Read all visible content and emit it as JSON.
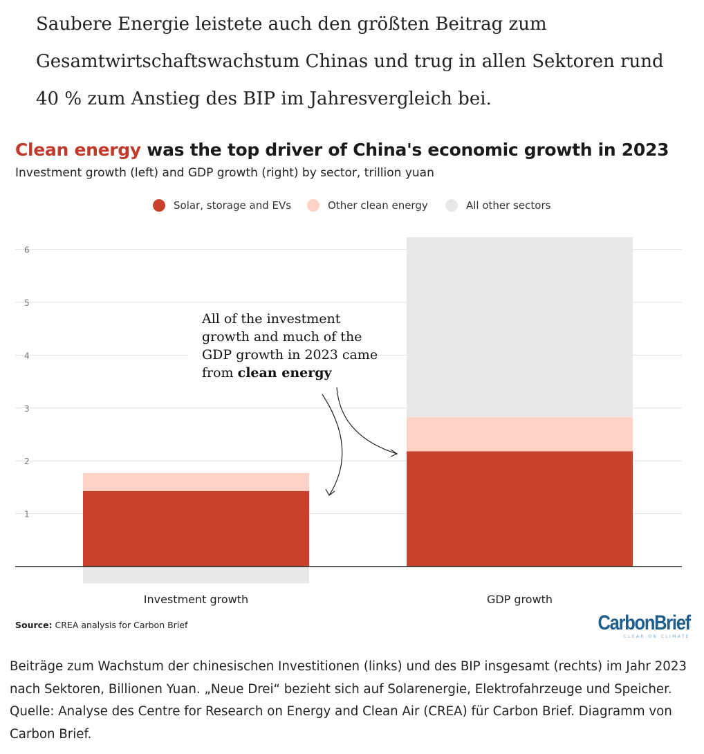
{
  "article": {
    "intro_text": "Saubere Energie leistete auch den größten Beitrag zum Gesamtwirtschaftswachstum Chinas und trug in allen Sektoren rund 40 % zum Anstieg des BIP im Jahresvergleich bei."
  },
  "chart_data": {
    "type": "bar",
    "stacked": true,
    "title_highlight": "Clean energy",
    "title_rest": " was the top driver of China's economic growth in 2023",
    "subtitle": "Investment growth (left) and GDP growth (right) by sector, trillion yuan",
    "categories": [
      "Investment growth",
      "GDP growth"
    ],
    "series": [
      {
        "name": "Solar, storage and EVs",
        "color": "#c8412c",
        "values": [
          1.43,
          2.18
        ]
      },
      {
        "name": "Other clean energy",
        "color": "#fdd2c5",
        "values": [
          0.34,
          0.65
        ]
      },
      {
        "name": "All other sectors",
        "color": "#e8e8e8",
        "values": [
          -0.32,
          3.4
        ]
      }
    ],
    "ylim": [
      -0.32,
      6.2
    ],
    "yticks": [
      1,
      2,
      3,
      4,
      5,
      6
    ],
    "grid": true,
    "legend_position": "top-center",
    "annotation_lines": [
      "All of the investment",
      "growth and much of the",
      "GDP growth in 2023 came"
    ],
    "annotation_last_prefix": "from ",
    "annotation_last_bold": "clean energy",
    "source_label": "Source:",
    "source_text": " CREA analysis for Carbon Brief"
  },
  "logo": {
    "name": "CarbonBrief",
    "tagline": "CLEAR ON CLIMATE"
  },
  "caption": {
    "text": "Beiträge zum Wachstum der chinesischen Investitionen (links) und des BIP insgesamt (rechts) im Jahr 2023 nach Sektoren, Billionen Yuan. „Neue Drei“ bezieht sich auf Solarenergie, Elektrofahrzeuge und Speicher. Quelle: Analyse des Centre for Research on Energy and Clean Air (CREA) für Carbon Brief. Diagramm von Carbon Brief."
  }
}
